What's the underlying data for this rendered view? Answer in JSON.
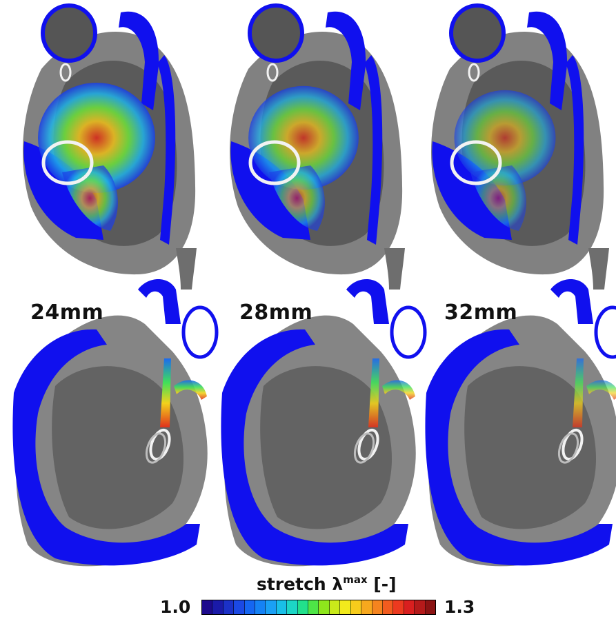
{
  "panels": [
    {
      "label": "24mm",
      "stretch_intensity": 1.0
    },
    {
      "label": "28mm",
      "stretch_intensity": 0.8
    },
    {
      "label": "32mm",
      "stretch_intensity": 0.55
    }
  ],
  "colorbar": {
    "title": "stretch λ",
    "title_superscript": "max",
    "title_unit": "[-]",
    "min_label": "1.0",
    "max_label": "1.3",
    "min": 1.0,
    "max": 1.3,
    "colors": [
      "#1d0a8c",
      "#1a1aa8",
      "#1b31c7",
      "#1b49e4",
      "#1566f2",
      "#1582f5",
      "#1aa0f5",
      "#19bfe8",
      "#1cd6c6",
      "#22e08c",
      "#4ee547",
      "#8ee61c",
      "#c9ea1a",
      "#f2ea1c",
      "#f7cc1c",
      "#f7a81e",
      "#f5841f",
      "#f25c1f",
      "#ec3a1f",
      "#d91f1f",
      "#b41a1a",
      "#8b1313"
    ]
  },
  "palette": {
    "tissue": "#1010ee",
    "anatomy_dark": "#3a3a3a",
    "anatomy_light": "#8a8a8a",
    "device_ring": "#f2f2f2"
  }
}
